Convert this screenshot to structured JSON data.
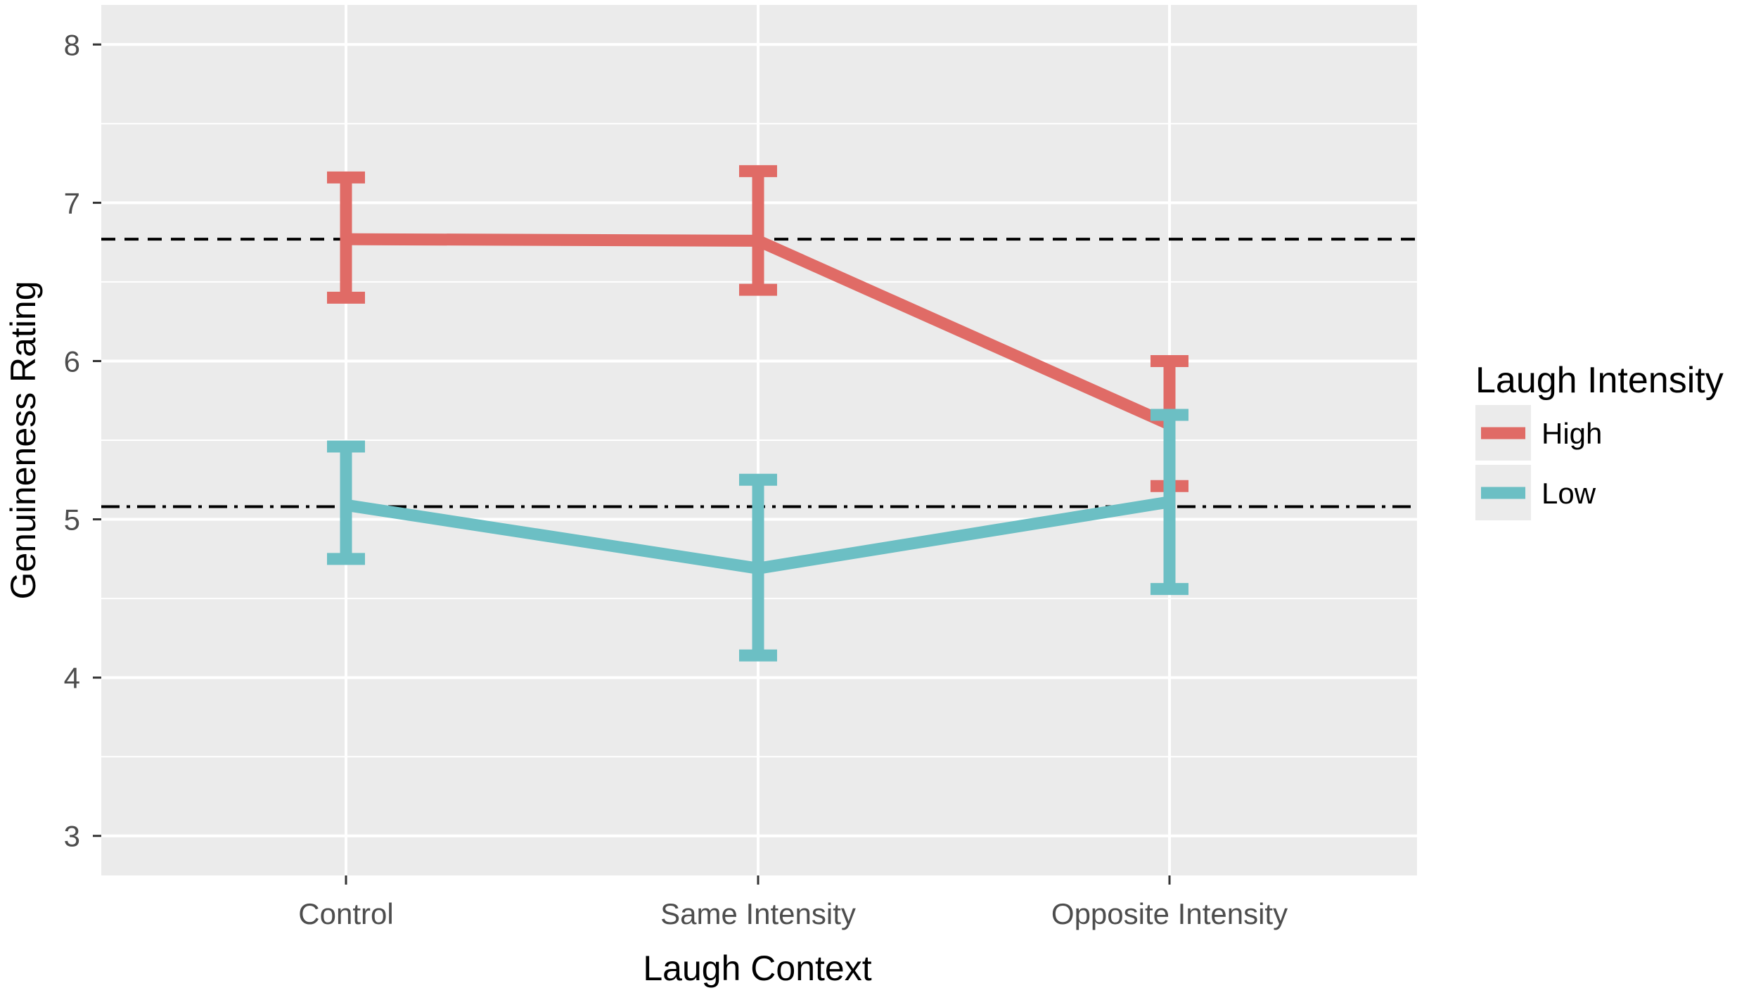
{
  "chart_data": {
    "type": "line",
    "xlabel": "Laugh Context",
    "ylabel": "Genuineness Rating",
    "categories": [
      "Control",
      "Same Intensity",
      "Opposite Intensity"
    ],
    "ylim": [
      2.75,
      8.25
    ],
    "yticks": [
      "3",
      "4",
      "5",
      "6",
      "7",
      "8"
    ],
    "grid": true,
    "legend": {
      "title": "Laugh Intensity",
      "position": "right"
    },
    "series": [
      {
        "name": "High",
        "color": "#E06B66",
        "values": [
          6.77,
          6.76,
          5.6
        ],
        "ci_low": [
          6.4,
          6.45,
          5.21
        ],
        "ci_high": [
          7.16,
          7.2,
          6.0
        ]
      },
      {
        "name": "Low",
        "color": "#6CBFC4",
        "values": [
          5.09,
          4.69,
          5.11
        ],
        "ci_low": [
          4.75,
          4.14,
          4.56
        ],
        "ci_high": [
          5.46,
          5.25,
          5.66
        ]
      }
    ],
    "reference_lines": [
      {
        "style": "dashed",
        "y": 6.77
      },
      {
        "style": "dotdash",
        "y": 5.08
      }
    ]
  }
}
